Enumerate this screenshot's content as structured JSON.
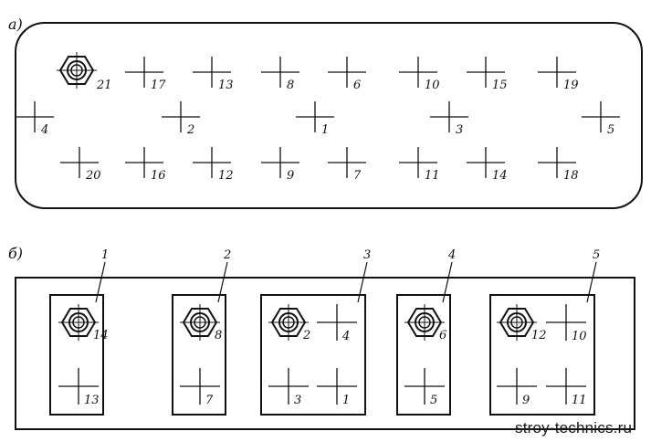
{
  "panel_a": {
    "label": "а)",
    "nut_label": "21",
    "marks": [
      "17",
      "13",
      "8",
      "6",
      "10",
      "15",
      "19",
      "4",
      "2",
      "1",
      "3",
      "5",
      "20",
      "16",
      "12",
      "9",
      "7",
      "11",
      "14",
      "18"
    ]
  },
  "panel_b": {
    "label": "б)",
    "frames": [
      {
        "leader": "1",
        "nut": "14",
        "mark_labels": [
          "13"
        ]
      },
      {
        "leader": "2",
        "nut": "8",
        "mark_labels": [
          "7"
        ]
      },
      {
        "leader": "3",
        "nut": "2",
        "mark_labels": [
          "4",
          "3",
          "1"
        ]
      },
      {
        "leader": "4",
        "nut": "6",
        "mark_labels": [
          "5"
        ]
      },
      {
        "leader": "5",
        "nut": "12",
        "mark_labels": [
          "10",
          "9",
          "11"
        ]
      }
    ]
  },
  "watermark": "stroy-technics.ru",
  "colors": {
    "line": "#111111",
    "background": "#ffffff"
  },
  "icons": {
    "nut": "hex-nut-icon",
    "mark": "crosshair-mark-icon"
  }
}
